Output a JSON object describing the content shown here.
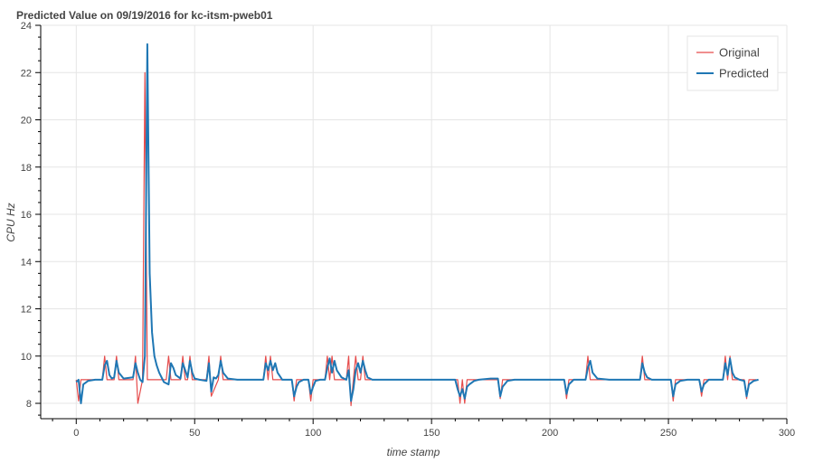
{
  "chart_data": {
    "type": "line",
    "title": "Predicted Value on 09/19/2016 for kc-itsm-pweb01",
    "xlabel": "time stamp",
    "ylabel": "CPU Hz",
    "xlim": [
      -15,
      300
    ],
    "ylim": [
      7.35,
      24
    ],
    "x_ticks": [
      0,
      50,
      100,
      150,
      200,
      250,
      300
    ],
    "x_tick_labels": [
      "0",
      "50",
      "100",
      "150",
      "200",
      "250",
      "300"
    ],
    "y_ticks": [
      8,
      10,
      12,
      14,
      16,
      18,
      20,
      22,
      24
    ],
    "y_tick_labels": [
      "8",
      "10",
      "12",
      "14",
      "16",
      "18",
      "20",
      "22",
      "24"
    ],
    "grid": true,
    "legend_position": "top-right",
    "series": [
      {
        "name": "Original",
        "color": "#e64c4c",
        "x": [
          0,
          1,
          2,
          3,
          11,
          12,
          13,
          16,
          17,
          18,
          24,
          25,
          26,
          28,
          29,
          30,
          31,
          38,
          39,
          40,
          44,
          45,
          46,
          47,
          48,
          49,
          55,
          56,
          57,
          60,
          61,
          62,
          79,
          80,
          81,
          82,
          83,
          84,
          91,
          92,
          93,
          98,
          99,
          100,
          105,
          106,
          107,
          108,
          109,
          114,
          115,
          116,
          117,
          118,
          119,
          120,
          121,
          122,
          130,
          140,
          150,
          161,
          162,
          163,
          164,
          165,
          166,
          170,
          178,
          179,
          180,
          190,
          200,
          206,
          207,
          208,
          215,
          216,
          217,
          238,
          239,
          240,
          251,
          252,
          253,
          263,
          264,
          265,
          273,
          274,
          275,
          276,
          277,
          282,
          283,
          284,
          287
        ],
        "y": [
          9,
          8.1,
          9,
          9,
          9,
          10,
          9,
          9,
          10,
          9,
          9,
          10,
          8,
          9,
          22,
          9,
          9,
          9,
          10,
          9,
          9,
          10,
          9,
          9,
          10,
          9,
          9,
          10,
          8.3,
          9,
          10,
          9,
          9,
          10,
          9,
          10,
          9,
          9,
          9,
          8.1,
          9,
          9,
          8.1,
          9,
          9,
          10,
          9,
          10,
          9,
          9,
          10,
          7.9,
          9,
          10,
          9,
          9,
          10,
          9,
          9,
          9,
          9,
          9,
          8,
          9,
          8,
          9,
          9,
          9,
          9,
          8.2,
          9,
          9,
          9,
          9,
          8.2,
          9,
          9,
          10,
          9,
          9,
          10,
          9,
          9,
          8.1,
          9,
          9,
          8.3,
          9,
          9,
          10,
          9,
          10,
          9,
          9,
          8.2,
          9,
          9
        ]
      },
      {
        "name": "Predicted",
        "color": "#1f77b4",
        "x": [
          0,
          1,
          2,
          3,
          5,
          8,
          11,
          12,
          13,
          14,
          15,
          16,
          17,
          18,
          20,
          24,
          25,
          26,
          27,
          28,
          29,
          30,
          31,
          32,
          33,
          34,
          35,
          37,
          39,
          40,
          41,
          42,
          44,
          45,
          46,
          47,
          48,
          49,
          50,
          52,
          55,
          56,
          57,
          58,
          59,
          60,
          61,
          62,
          64,
          68,
          79,
          80,
          81,
          82,
          83,
          84,
          85,
          87,
          91,
          92,
          93,
          94,
          96,
          98,
          99,
          100,
          101,
          103,
          105,
          106,
          107,
          108,
          109,
          110,
          112,
          114,
          115,
          116,
          117,
          118,
          119,
          120,
          121,
          122,
          123,
          125,
          130,
          140,
          150,
          160,
          161,
          162,
          163,
          164,
          165,
          166,
          168,
          170,
          175,
          178,
          179,
          180,
          182,
          185,
          190,
          200,
          206,
          207,
          208,
          210,
          215,
          216,
          217,
          218,
          220,
          225,
          238,
          239,
          240,
          241,
          243,
          251,
          252,
          253,
          255,
          258,
          263,
          264,
          265,
          267,
          273,
          274,
          275,
          276,
          277,
          278,
          280,
          282,
          283,
          284,
          286,
          288
        ],
        "y": [
          8.9,
          9,
          8,
          8.8,
          8.95,
          9,
          9,
          9.6,
          9.8,
          9.2,
          9.05,
          9.1,
          9.8,
          9.3,
          9.05,
          9.1,
          9.7,
          9.3,
          9,
          8.9,
          10,
          23.2,
          13.5,
          11,
          10,
          9.6,
          9.3,
          8.9,
          8.8,
          9.7,
          9.5,
          9.2,
          9.05,
          9.7,
          9.4,
          9.1,
          9.8,
          9.3,
          9.05,
          9,
          8.95,
          9.7,
          8.5,
          9.1,
          9.05,
          9.2,
          9.8,
          9.3,
          9.05,
          9,
          9,
          9.7,
          9.4,
          9.8,
          9.4,
          9.7,
          9.3,
          9,
          9,
          8.3,
          8.7,
          8.9,
          9,
          9,
          8.4,
          8.7,
          8.95,
          9,
          9,
          9.5,
          9.9,
          9.3,
          9.8,
          9.4,
          9.1,
          9,
          9.4,
          8.1,
          8.6,
          9.4,
          9.7,
          9.3,
          9.8,
          9.4,
          9.1,
          9,
          9,
          9,
          9,
          9,
          8.6,
          8.3,
          8.6,
          8.2,
          8.7,
          8.8,
          8.95,
          9,
          9.05,
          9.05,
          8.3,
          8.7,
          8.95,
          9,
          9,
          9,
          9,
          8.4,
          8.8,
          9,
          9,
          9.5,
          9.8,
          9.3,
          9.05,
          9,
          9,
          9.7,
          9.3,
          9.1,
          9,
          9,
          8.3,
          8.8,
          8.95,
          9,
          9,
          8.5,
          8.8,
          9,
          9,
          9.7,
          9.2,
          9.9,
          9.3,
          9.1,
          9,
          8.95,
          8.3,
          8.8,
          8.95,
          9
        ]
      }
    ]
  }
}
